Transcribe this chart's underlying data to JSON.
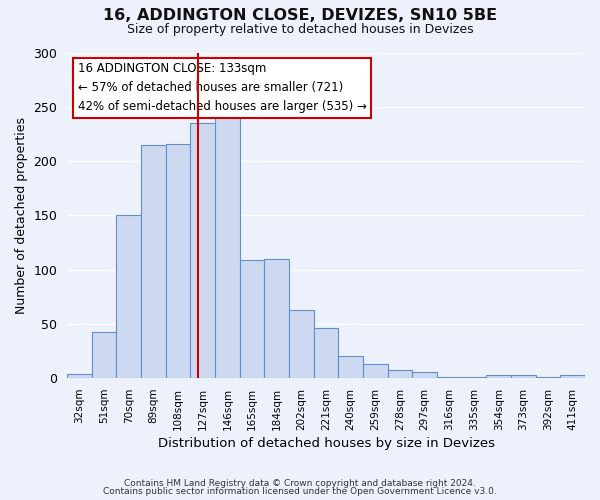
{
  "title": "16, ADDINGTON CLOSE, DEVIZES, SN10 5BE",
  "subtitle": "Size of property relative to detached houses in Devizes",
  "xlabel": "Distribution of detached houses by size in Devizes",
  "ylabel": "Number of detached properties",
  "bin_labels": [
    "32sqm",
    "51sqm",
    "70sqm",
    "89sqm",
    "108sqm",
    "127sqm",
    "146sqm",
    "165sqm",
    "184sqm",
    "202sqm",
    "221sqm",
    "240sqm",
    "259sqm",
    "278sqm",
    "297sqm",
    "316sqm",
    "335sqm",
    "354sqm",
    "373sqm",
    "392sqm",
    "411sqm"
  ],
  "bar_heights": [
    4,
    43,
    150,
    215,
    216,
    235,
    248,
    109,
    110,
    63,
    46,
    20,
    13,
    8,
    6,
    1,
    1,
    3,
    3,
    1,
    3
  ],
  "bar_color": "#ccd9f0",
  "bar_edge_color": "#6090c8",
  "ylim": [
    0,
    300
  ],
  "yticks": [
    0,
    50,
    100,
    150,
    200,
    250,
    300
  ],
  "vline_color": "#cc0000",
  "annotation_title": "16 ADDINGTON CLOSE: 133sqm",
  "annotation_line1": "← 57% of detached houses are smaller (721)",
  "annotation_line2": "42% of semi-detached houses are larger (535) →",
  "annotation_box_color": "#ffffff",
  "annotation_box_edge": "#cc0000",
  "footer1": "Contains HM Land Registry data © Crown copyright and database right 2024.",
  "footer2": "Contains public sector information licensed under the Open Government Licence v3.0.",
  "background_color": "#edf1fb",
  "grid_color": "#ffffff"
}
